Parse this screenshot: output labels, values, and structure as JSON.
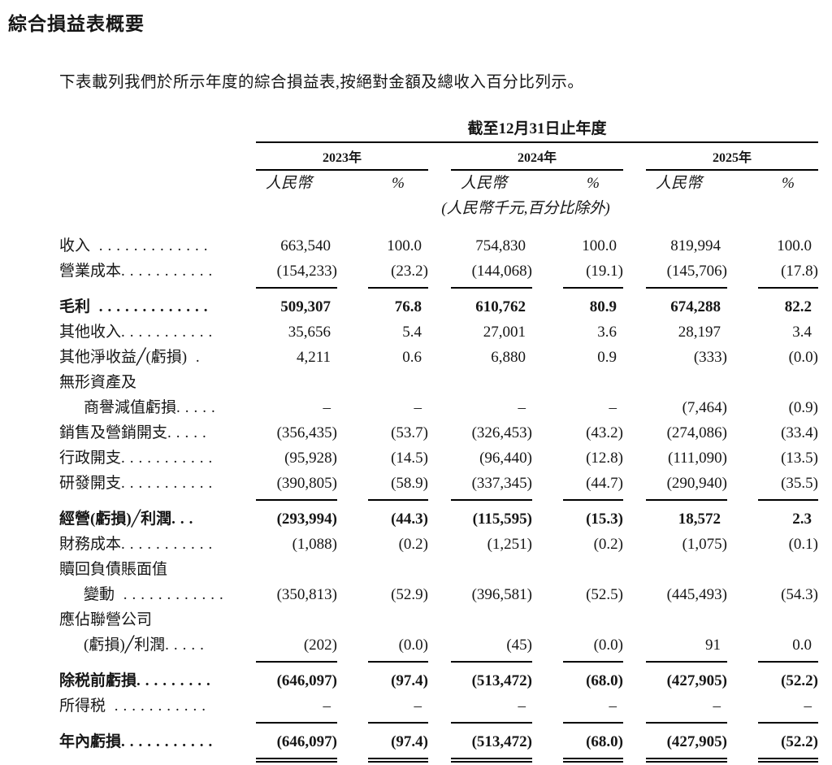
{
  "page": {
    "title": "綜合損益表概要",
    "intro": "下表載列我們於所示年度的綜合損益表,按絕對金額及總收入百分比列示。"
  },
  "table": {
    "period_header": "截至12月31日止年度",
    "years": [
      "2023年",
      "2024年",
      "2025年"
    ],
    "subcols": {
      "rmb": "人民幣",
      "pct": "%"
    },
    "unit_note": "(人民幣千元,百分比除外)",
    "rows": [
      {
        "label": "收入",
        "leader": " .............",
        "bold": false,
        "indent": false,
        "rule": null,
        "values": [
          "663,540",
          "100.0",
          "754,830",
          "100.0",
          "819,994",
          "100.0"
        ]
      },
      {
        "label": "營業成本",
        "leader": "...........",
        "bold": false,
        "indent": false,
        "rule": "single",
        "values": [
          "(154,233)",
          "(23.2)",
          "(144,068)",
          "(19.1)",
          "(145,706)",
          "(17.8)"
        ]
      },
      {
        "label": "毛利",
        "leader": " .............",
        "bold": true,
        "indent": false,
        "rule": null,
        "values": [
          "509,307",
          "76.8",
          "610,762",
          "80.9",
          "674,288",
          "82.2"
        ]
      },
      {
        "label": "其他收入",
        "leader": "...........",
        "bold": false,
        "indent": false,
        "rule": null,
        "values": [
          "35,656",
          "5.4",
          "27,001",
          "3.6",
          "28,197",
          "3.4"
        ]
      },
      {
        "label": "其他淨收益╱(虧損)",
        "leader": " .",
        "bold": false,
        "indent": false,
        "rule": null,
        "values": [
          "4,211",
          "0.6",
          "6,880",
          "0.9",
          "(333)",
          "(0.0)"
        ]
      },
      {
        "label": "無形資產及",
        "leader": null,
        "bold": false,
        "indent": false,
        "rule": null,
        "values": null
      },
      {
        "label": "商譽減值虧損",
        "leader": ".....",
        "bold": false,
        "indent": true,
        "rule": null,
        "values": [
          "–",
          "–",
          "–",
          "–",
          "(7,464)",
          "(0.9)"
        ]
      },
      {
        "label": "銷售及營銷開支",
        "leader": ".....",
        "bold": false,
        "indent": false,
        "rule": null,
        "values": [
          "(356,435)",
          "(53.7)",
          "(326,453)",
          "(43.2)",
          "(274,086)",
          "(33.4)"
        ]
      },
      {
        "label": "行政開支",
        "leader": "...........",
        "bold": false,
        "indent": false,
        "rule": null,
        "values": [
          "(95,928)",
          "(14.5)",
          "(96,440)",
          "(12.8)",
          "(111,090)",
          "(13.5)"
        ]
      },
      {
        "label": "研發開支",
        "leader": "...........",
        "bold": false,
        "indent": false,
        "rule": "single",
        "values": [
          "(390,805)",
          "(58.9)",
          "(337,345)",
          "(44.7)",
          "(290,940)",
          "(35.5)"
        ]
      },
      {
        "label": "經營(虧損)╱利潤",
        "leader": "...",
        "bold": true,
        "indent": false,
        "rule": null,
        "values": [
          "(293,994)",
          "(44.3)",
          "(115,595)",
          "(15.3)",
          "18,572",
          "2.3"
        ]
      },
      {
        "label": "財務成本",
        "leader": "...........",
        "bold": false,
        "indent": false,
        "rule": null,
        "values": [
          "(1,088)",
          "(0.2)",
          "(1,251)",
          "(0.2)",
          "(1,075)",
          "(0.1)"
        ]
      },
      {
        "label": "贖回負債賬面值",
        "leader": null,
        "bold": false,
        "indent": false,
        "rule": null,
        "values": null
      },
      {
        "label": "變動",
        "leader": " ............",
        "bold": false,
        "indent": true,
        "rule": null,
        "values": [
          "(350,813)",
          "(52.9)",
          "(396,581)",
          "(52.5)",
          "(445,493)",
          "(54.3)"
        ]
      },
      {
        "label": "應佔聯營公司",
        "leader": null,
        "bold": false,
        "indent": false,
        "rule": null,
        "values": null
      },
      {
        "label": "(虧損)╱利潤",
        "leader": ".....",
        "bold": false,
        "indent": true,
        "rule": "single",
        "values": [
          "(202)",
          "(0.0)",
          "(45)",
          "(0.0)",
          "91",
          "0.0"
        ]
      },
      {
        "label": "除税前虧損",
        "leader": ".........",
        "bold": true,
        "indent": false,
        "rule": null,
        "values": [
          "(646,097)",
          "(97.4)",
          "(513,472)",
          "(68.0)",
          "(427,905)",
          "(52.2)"
        ]
      },
      {
        "label": "所得税",
        "leader": " ...........",
        "bold": false,
        "indent": false,
        "rule": "single",
        "values": [
          "–",
          "–",
          "–",
          "–",
          "–",
          "–"
        ]
      },
      {
        "label": "年內虧損",
        "leader": "...........",
        "bold": true,
        "indent": false,
        "rule": "double",
        "values": [
          "(646,097)",
          "(97.4)",
          "(513,472)",
          "(68.0)",
          "(427,905)",
          "(52.2)"
        ]
      }
    ]
  }
}
